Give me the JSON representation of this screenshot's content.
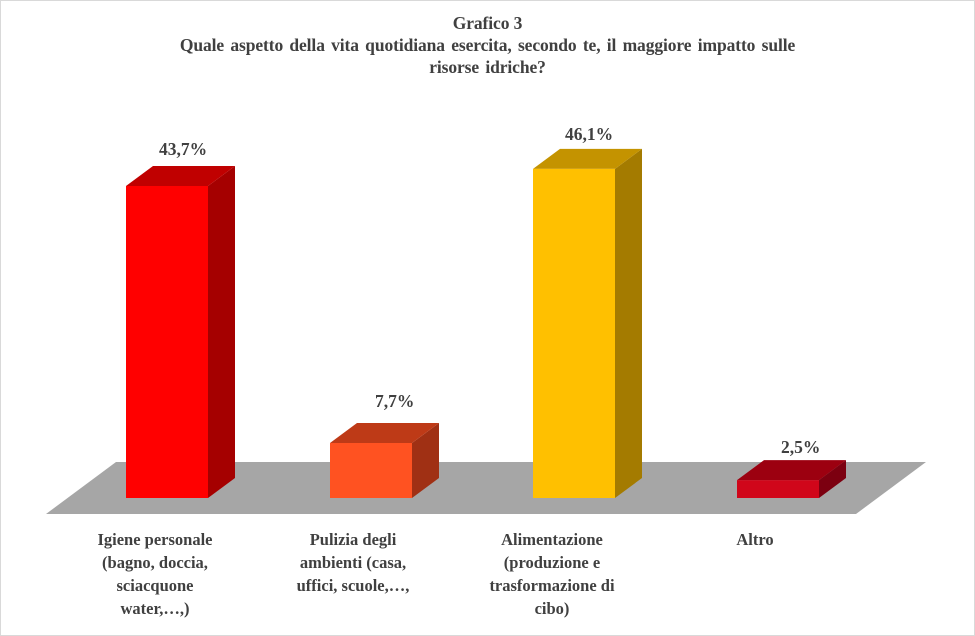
{
  "chart": {
    "title_line1": "Grafico 3",
    "title_line2": "Quale aspetto della vita quotidiana  esercita, secondo te, il maggiore impatto sulle",
    "title_line3": "risorse idriche?",
    "floor_color": "#a6a6a6",
    "bars": [
      {
        "value_label": "43,7%",
        "front": "#ff0000",
        "top": "#c00000",
        "side": "#a50000",
        "cat_lines": [
          "Igiene personale",
          "(bagno, doccia,",
          "sciacquone",
          "water,…,)"
        ]
      },
      {
        "value_label": "7,7%",
        "front": "#ff5221",
        "top": "#be3a17",
        "side": "#a03014",
        "cat_lines": [
          "Pulizia degli",
          "ambienti (casa,",
          "uffici, scuole,…,"
        ]
      },
      {
        "value_label": "46,1%",
        "front": "#ffc000",
        "top": "#c49300",
        "side": "#a47b00",
        "cat_lines": [
          "Alimentazione",
          "(produzione e",
          "trasformazione di",
          "cibo)"
        ]
      },
      {
        "value_label": "2,5%",
        "front": "#d0061a",
        "top": "#9c0010",
        "side": "#7c0010",
        "cat_lines": [
          "Altro"
        ]
      }
    ]
  },
  "chart_data": {
    "type": "bar",
    "title": "Grafico 3 - Quale aspetto della vita quotidiana esercita, secondo te, il maggiore impatto sulle risorse idriche?",
    "categories": [
      "Igiene personale (bagno, doccia, sciacquone water,…,)",
      "Pulizia degli ambienti (casa, uffici, scuole,…,",
      "Alimentazione (produzione e trasformazione di cibo)",
      "Altro"
    ],
    "values": [
      43.7,
      7.7,
      46.1,
      2.5
    ],
    "unit": "%",
    "xlabel": "",
    "ylabel": "",
    "ylim": [
      0,
      50
    ],
    "grid": false,
    "legend": "none",
    "style": "3d-column",
    "colors": [
      "#ff0000",
      "#ff5221",
      "#ffc000",
      "#d0061a"
    ]
  }
}
